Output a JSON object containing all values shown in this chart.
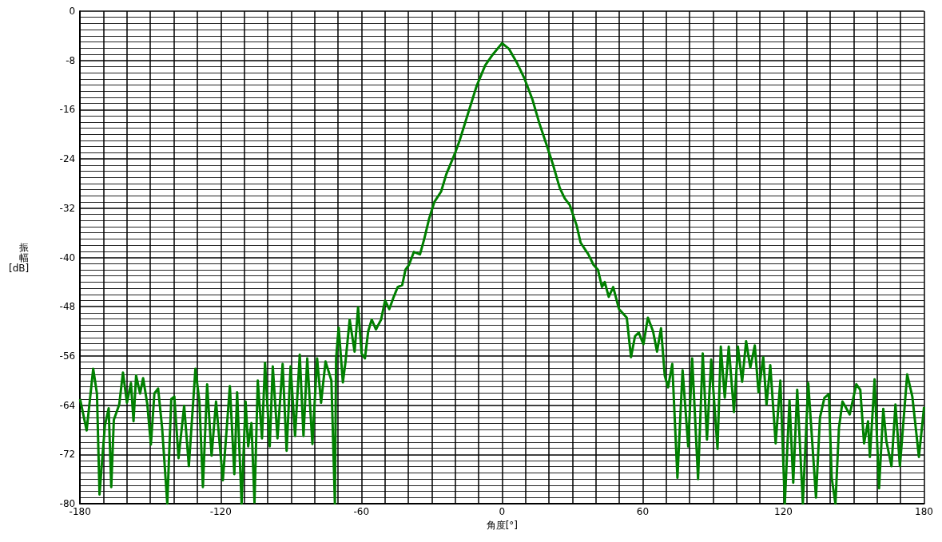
{
  "chart_data": {
    "type": "line",
    "xlabel": "角度[°]",
    "ylabel": "振幅[dB]",
    "xlim": [
      -180,
      180
    ],
    "ylim": [
      -80,
      0
    ],
    "xticks": [
      -180,
      -120,
      -60,
      0,
      60,
      120,
      180
    ],
    "yticks": [
      0,
      -8,
      -16,
      -24,
      -32,
      -40,
      -48,
      -56,
      -64,
      -72,
      -80
    ],
    "grid": true,
    "marker": "none",
    "line_style": "solid",
    "series": [
      {
        "color": "#008000",
        "x": [
          -180,
          -177.2,
          -174.4,
          -172.8,
          -171.7,
          -170.6,
          -169.4,
          -167.8,
          -166.7,
          -165.6,
          -163.3,
          -161.7,
          -160,
          -158.3,
          -157.2,
          -156.1,
          -154.4,
          -153.1,
          -151.3,
          -149.8,
          -148.3,
          -146.7,
          -145,
          -142.8,
          -141.1,
          -139.8,
          -138,
          -135.6,
          -133.6,
          -130.8,
          -129.1,
          -127.6,
          -125.8,
          -123.9,
          -122,
          -119.1,
          -116.1,
          -114.2,
          -113,
          -111.1,
          -109.4,
          -108.3,
          -106.9,
          -105.6,
          -104.2,
          -102.4,
          -101.1,
          -99.1,
          -97.8,
          -95.8,
          -93.6,
          -91.9,
          -90.2,
          -88.3,
          -86.3,
          -84.7,
          -83.1,
          -80.9,
          -78.9,
          -77.2,
          -75.3,
          -72.8,
          -71.3,
          -70.8,
          -69.7,
          -67.9,
          -66.8,
          -65,
          -62.9,
          -61.4,
          -59.9,
          -58.5,
          -57.1,
          -55.6,
          -53.8,
          -51.6,
          -49.9,
          -48.1,
          -46.2,
          -44.5,
          -42.6,
          -41.2,
          -39.7,
          -37.6,
          -35,
          -33.2,
          -31.1,
          -28.9,
          -26,
          -23.8,
          -20.2,
          -18.1,
          -14.5,
          -10.8,
          -7.2,
          -4.3,
          0,
          2.9,
          6.5,
          9.4,
          13,
          15.9,
          18.8,
          21.7,
          24.6,
          26.7,
          28.9,
          31.8,
          33.5,
          36.8,
          39,
          40.9,
          42.6,
          43.8,
          45.5,
          47.4,
          49.9,
          53.2,
          55,
          56.7,
          58.3,
          60.3,
          62.2,
          64.4,
          66.1,
          67.8,
          69.4,
          70.8,
          72.6,
          74.8,
          77,
          79.4,
          81.1,
          83.6,
          85.6,
          87.4,
          89.2,
          91.9,
          93.3,
          95,
          96.7,
          98.9,
          100.6,
          102.4,
          104.1,
          105.9,
          107.8,
          109.4,
          111.4,
          112.8,
          114.4,
          116.7,
          118.7,
          120.6,
          122.6,
          124.2,
          125.9,
          128.3,
          130.6,
          133.9,
          135.6,
          137.5,
          139.4,
          140.6,
          142.2,
          143.7,
          145.2,
          148.3,
          151.1,
          152.8,
          154.4,
          156.1,
          156.9,
          158.9,
          160.8,
          162.6,
          163.9,
          166.1,
          167.8,
          169.7,
          172.8,
          175,
          177.8,
          180
        ],
        "values": [
          -63,
          -68.1,
          -58.1,
          -62.1,
          -78.5,
          -73,
          -67.3,
          -64.5,
          -77.3,
          -66.4,
          -63.9,
          -58.7,
          -63.6,
          -60.4,
          -66.6,
          -59.2,
          -62.1,
          -59.6,
          -63.9,
          -70.4,
          -62.1,
          -61.3,
          -67.7,
          -80,
          -63,
          -62.6,
          -72.6,
          -64.1,
          -73.9,
          -58.1,
          -63.4,
          -77.3,
          -60.6,
          -72.2,
          -63.4,
          -76.2,
          -60.9,
          -75.2,
          -61.9,
          -80,
          -63.4,
          -70.7,
          -66.9,
          -79.8,
          -60,
          -69.4,
          -57.1,
          -70.7,
          -57.7,
          -69.4,
          -57.3,
          -71.4,
          -57.7,
          -69,
          -55.8,
          -69,
          -56.4,
          -70.3,
          -56.4,
          -63.6,
          -56.9,
          -60,
          -80,
          -56.4,
          -51.4,
          -60.3,
          -57,
          -50.1,
          -55.3,
          -48.1,
          -55.6,
          -56.4,
          -52,
          -50.1,
          -51.7,
          -50.1,
          -47,
          -48.4,
          -46.4,
          -44.8,
          -44.5,
          -42,
          -41.2,
          -39.1,
          -39.5,
          -37,
          -33.7,
          -31,
          -29.3,
          -26.5,
          -23.2,
          -21,
          -16.6,
          -12.1,
          -8.8,
          -7.2,
          -5.2,
          -6.1,
          -8.5,
          -10.8,
          -14.4,
          -18.2,
          -21.5,
          -24.9,
          -28.7,
          -30.4,
          -31.5,
          -34.8,
          -37.6,
          -39.5,
          -41.2,
          -42,
          -44.8,
          -44,
          -46.4,
          -44.8,
          -48.4,
          -49.8,
          -56.2,
          -52.8,
          -52.2,
          -54.1,
          -49.8,
          -52,
          -55.3,
          -51.5,
          -59.2,
          -61.1,
          -57.3,
          -75.8,
          -58.3,
          -70.7,
          -56.4,
          -76,
          -55.6,
          -69.6,
          -56.6,
          -71.1,
          -54.5,
          -62.8,
          -54.5,
          -65.1,
          -54.5,
          -60.2,
          -53.6,
          -57.9,
          -54.3,
          -61.9,
          -56.2,
          -63.9,
          -57.5,
          -70.2,
          -60,
          -80,
          -63.2,
          -76.6,
          -61.5,
          -80,
          -60.4,
          -79,
          -66,
          -62.8,
          -62.2,
          -75.8,
          -80,
          -67.7,
          -63.4,
          -65.5,
          -60.6,
          -61.5,
          -70.2,
          -66.6,
          -72.4,
          -59.8,
          -77.5,
          -64.6,
          -69.8,
          -73.9,
          -63.9,
          -73.9,
          -59,
          -62.6,
          -72.4,
          -64.3
        ]
      }
    ]
  }
}
